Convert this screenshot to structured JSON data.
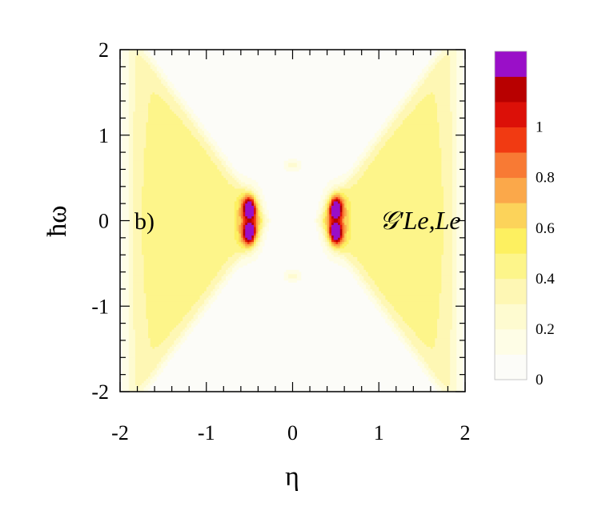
{
  "chart_data": {
    "type": "heatmap",
    "title": "",
    "xlabel": "η",
    "ylabel": "ħω",
    "xlim": [
      -2,
      2
    ],
    "ylim": [
      -2,
      2
    ],
    "xticks": [
      "-2",
      "-1",
      "0",
      "1",
      "2"
    ],
    "yticks": [
      "-2",
      "-1",
      "0",
      "1",
      "2"
    ],
    "panel_label": "b)",
    "annotation": "𝒢'Le,Le",
    "grid": false,
    "colorbar": {
      "location": "right",
      "levels": [
        0,
        0.1,
        0.2,
        0.3,
        0.4,
        0.5,
        0.6,
        0.7,
        0.8,
        0.9,
        1.0,
        1.1,
        1.2
      ],
      "colors": [
        "#fcfcf8",
        "#fefde6",
        "#fefbd0",
        "#fef7b4",
        "#fdf58a",
        "#fdf060",
        "#fcd35a",
        "#fba84a",
        "#f87a34",
        "#f13a12",
        "#dc1008",
        "#b80000",
        "#9a0fc8"
      ],
      "tick_labels": [
        "0",
        "0.2",
        "0.4",
        "0.6",
        "0.8",
        "1"
      ]
    }
  }
}
